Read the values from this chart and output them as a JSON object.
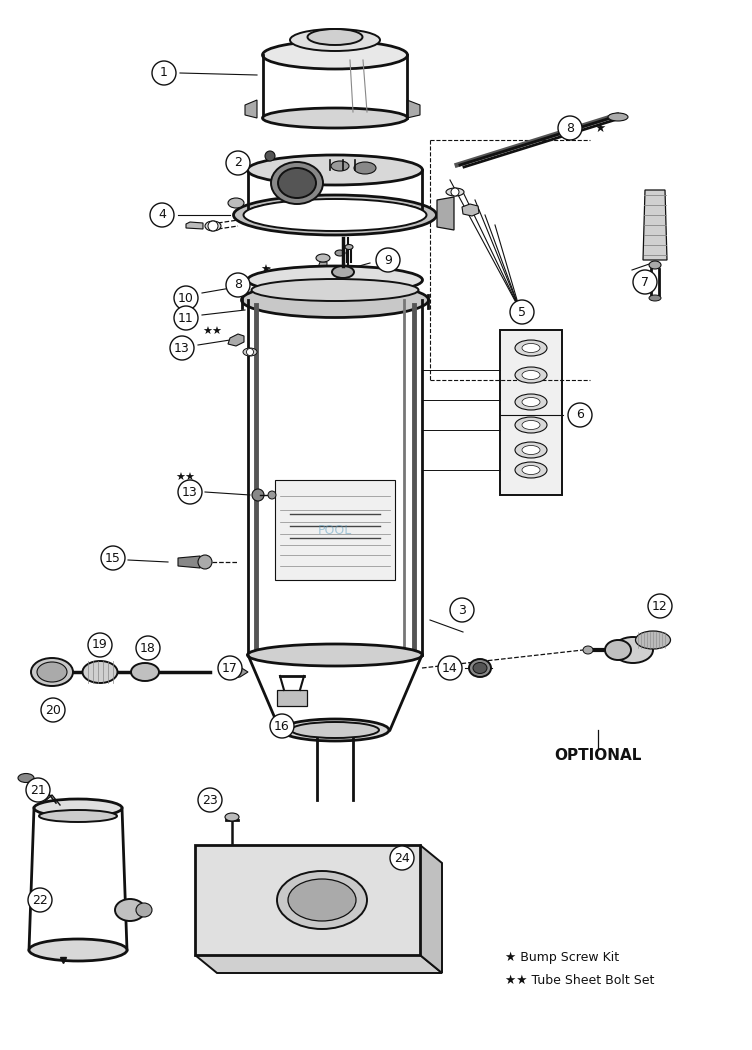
{
  "background_color": "#ffffff",
  "text_color": "#111111",
  "legend": [
    {
      "sym": "★",
      "text": " Bump Screw Kit"
    },
    {
      "sym": "★★",
      "text": " Tube Sheet Bolt Set"
    }
  ],
  "fig_width": 7.52,
  "fig_height": 10.5,
  "dpi": 100
}
